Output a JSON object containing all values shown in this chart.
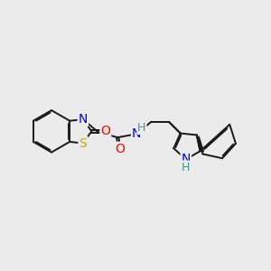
{
  "bg_color": "#ebebeb",
  "bond_color": "#1a1a1a",
  "bond_width": 1.4,
  "atom_colors": {
    "O": "#ff0000",
    "N": "#0000ff",
    "S": "#ccaa00",
    "NH_teal": "#4a9090",
    "C": "#1a1a1a"
  },
  "font_size": 9.5,
  "figsize": [
    3.0,
    3.0
  ],
  "dpi": 100,
  "xlim": [
    0.0,
    9.5
  ],
  "ylim": [
    1.5,
    8.5
  ]
}
